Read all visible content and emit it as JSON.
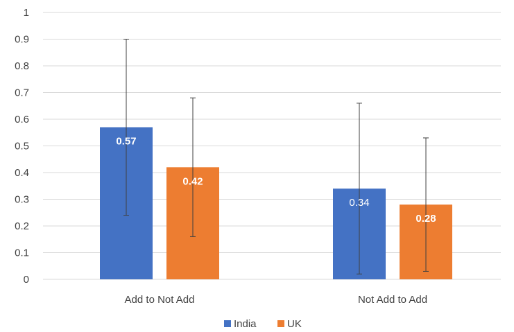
{
  "chart_data": {
    "type": "bar",
    "title": "",
    "xlabel": "",
    "ylabel": "",
    "categories": [
      "Add to Not Add",
      "Not Add to Add"
    ],
    "series": [
      {
        "name": "India",
        "color": "#4472c4",
        "values": [
          0.57,
          0.34
        ],
        "error_low": [
          0.24,
          0.02
        ],
        "error_high": [
          0.9,
          0.66
        ],
        "data_labels": [
          "0.57",
          "0.34"
        ],
        "data_label_bold": [
          true,
          false
        ]
      },
      {
        "name": "UK",
        "color": "#ed7d31",
        "values": [
          0.42,
          0.28
        ],
        "error_low": [
          0.16,
          0.03
        ],
        "error_high": [
          0.68,
          0.53
        ],
        "data_labels": [
          "0.42",
          "0.28"
        ],
        "data_label_bold": [
          true,
          true
        ]
      }
    ],
    "ylim": [
      0,
      1
    ],
    "yticks": [
      "0",
      "0.1",
      "0.2",
      "0.3",
      "0.4",
      "0.5",
      "0.6",
      "0.7",
      "0.8",
      "0.9",
      "1"
    ],
    "grid": true,
    "legend_position": "bottom"
  }
}
